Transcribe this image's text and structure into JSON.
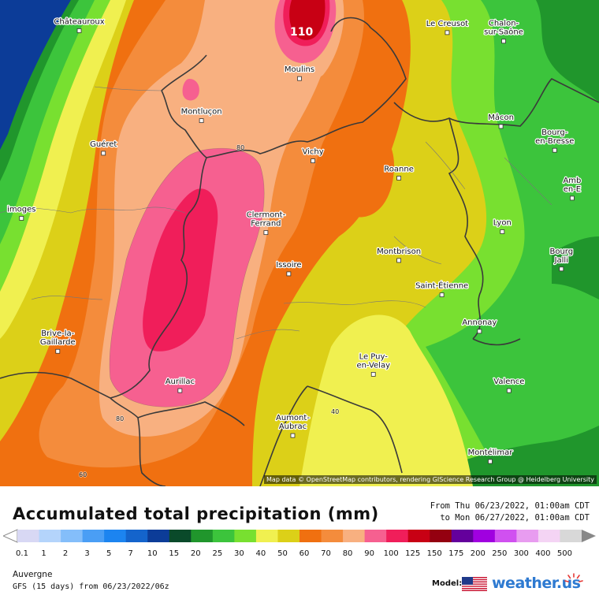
{
  "map": {
    "attribution": "Map data © OpenStreetMap contributors, rendering GIScience Research Group @ Heidelberg University",
    "cities": [
      {
        "name": "Châteauroux",
        "lon": 1.69,
        "lat": 46.81
      },
      {
        "name": "Le Creusot",
        "lon": 4.43,
        "lat": 46.8
      },
      {
        "name": "Chalon-\nsur-Saône",
        "lon": 4.85,
        "lat": 46.78
      },
      {
        "name": "Moulins",
        "lon": 3.33,
        "lat": 46.56
      },
      {
        "name": "Montluçon",
        "lon": 2.6,
        "lat": 46.34
      },
      {
        "name": "Mâcon",
        "lon": 4.83,
        "lat": 46.31
      },
      {
        "name": "Bourg-\nen-Bresse",
        "lon": 5.23,
        "lat": 46.21
      },
      {
        "name": "Guéret",
        "lon": 1.87,
        "lat": 46.17
      },
      {
        "name": "Vichy",
        "lon": 3.43,
        "lat": 46.13
      },
      {
        "name": "Roanne",
        "lon": 4.07,
        "lat": 46.04
      },
      {
        "name": "Amb\nen-E",
        "lon": 5.36,
        "lat": 45.96
      },
      {
        "name": "imoges",
        "lon": 1.26,
        "lat": 45.83
      },
      {
        "name": "Clermont-\nFerrand",
        "lon": 3.08,
        "lat": 45.78
      },
      {
        "name": "Lyon",
        "lon": 4.84,
        "lat": 45.76
      },
      {
        "name": "Bourg\nJalli",
        "lon": 5.28,
        "lat": 45.59
      },
      {
        "name": "Montbrison",
        "lon": 4.07,
        "lat": 45.61
      },
      {
        "name": "Issoire",
        "lon": 3.25,
        "lat": 45.54
      },
      {
        "name": "Saint-Étienne",
        "lon": 4.39,
        "lat": 45.43
      },
      {
        "name": "Brive-la-\nGaillarde",
        "lon": 1.53,
        "lat": 45.16
      },
      {
        "name": "Annonay",
        "lon": 4.67,
        "lat": 45.24
      },
      {
        "name": "Le Puy-\nen-Velay",
        "lon": 3.88,
        "lat": 45.04
      },
      {
        "name": "Aurillac",
        "lon": 2.44,
        "lat": 44.93
      },
      {
        "name": "Valence",
        "lon": 4.89,
        "lat": 44.93
      },
      {
        "name": "Aumont-\nAubrac",
        "lon": 3.28,
        "lat": 44.72
      },
      {
        "name": "Montélimar",
        "lon": 4.75,
        "lat": 44.56
      }
    ],
    "contour_labels": [
      "110",
      "80",
      "80",
      "60",
      "40"
    ]
  },
  "legend": {
    "title": "Accumulated total precipitation (mm)",
    "period_from": "From Thu 06/23/2022, 01:00am CDT",
    "period_to": "to Mon 06/27/2022, 01:00am CDT",
    "unit": "mm",
    "ticks": [
      "0.1",
      "1",
      "2",
      "3",
      "5",
      "7",
      "10",
      "15",
      "20",
      "25",
      "30",
      "40",
      "50",
      "60",
      "70",
      "80",
      "90",
      "100",
      "125",
      "150",
      "175",
      "200",
      "250",
      "300",
      "400",
      "500"
    ],
    "colors": [
      "#d8d8f4",
      "#b4d4fb",
      "#84befa",
      "#4a9ef5",
      "#1c84f0",
      "#1464cc",
      "#0c3c98",
      "#0a4a2a",
      "#20962c",
      "#3cc43c",
      "#78e030",
      "#f0f050",
      "#dcd018",
      "#f07010",
      "#f48c3c",
      "#f8b080",
      "#f66090",
      "#f01e5a",
      "#c80014",
      "#940010",
      "#64009c",
      "#a000e0",
      "#d050f0",
      "#e89cf0",
      "#f4d4f4",
      "#d8d8d8"
    ]
  },
  "footer": {
    "region": "Auvergne",
    "model_run": "GFS (15 days) from 06/23/2022/06z",
    "model_label": "Model:",
    "brand": "weather.us"
  }
}
